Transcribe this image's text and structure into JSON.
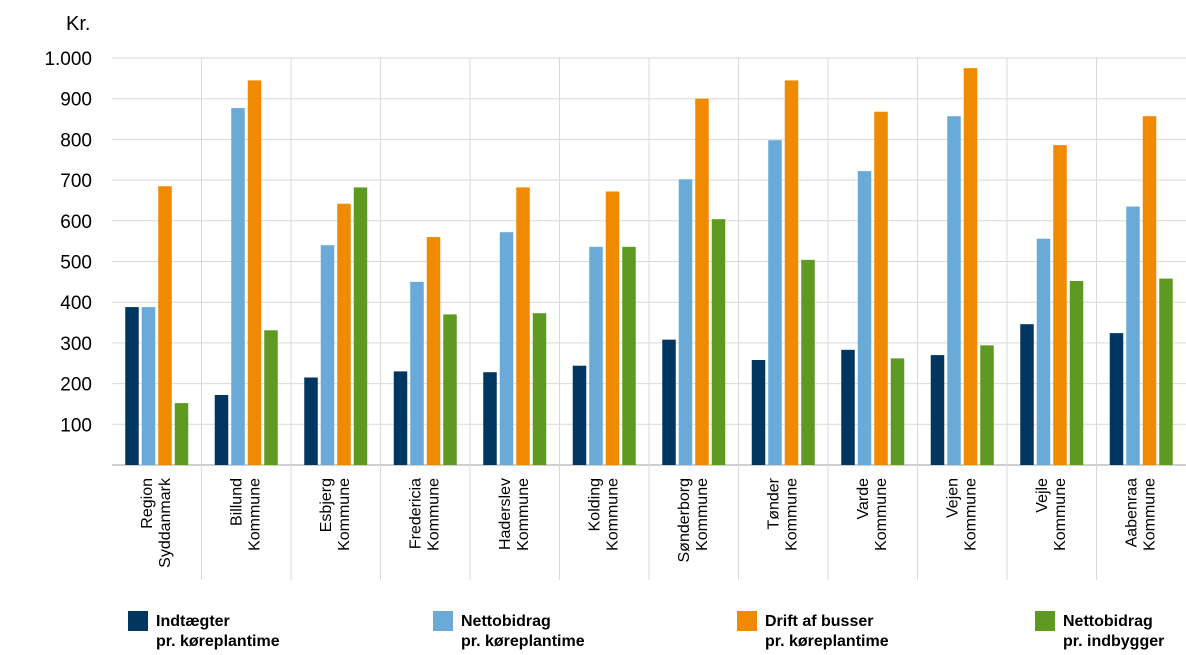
{
  "chart_data": {
    "type": "bar",
    "unit_label": "Kr.",
    "categories": [
      [
        "Region",
        "Syddanmark"
      ],
      [
        "Billund",
        "Kommune"
      ],
      [
        "Esbjerg",
        "Kommune"
      ],
      [
        "Fredericia",
        "Kommune"
      ],
      [
        "Haderslev",
        "Kommune"
      ],
      [
        "Kolding",
        "Kommune"
      ],
      [
        "Sønderborg",
        "Kommune"
      ],
      [
        "Tønder",
        "Kommune"
      ],
      [
        "Varde",
        "Kommune"
      ],
      [
        "Vejen",
        "Kommune"
      ],
      [
        "Vejle",
        "Kommune"
      ],
      [
        "Aabenraa",
        "Kommune"
      ]
    ],
    "series": [
      {
        "name": [
          "Indtægter",
          "pr. køreplantime"
        ],
        "color": "#003660",
        "values": [
          388,
          172,
          215,
          230,
          228,
          244,
          308,
          258,
          283,
          270,
          346,
          324
        ]
      },
      {
        "name": [
          "Nettobidrag",
          "pr. køreplantime"
        ],
        "color": "#6aaad8",
        "values": [
          388,
          877,
          540,
          450,
          572,
          536,
          702,
          798,
          722,
          857,
          556,
          635
        ]
      },
      {
        "name": [
          "Drift af busser",
          "pr. køreplantime"
        ],
        "color": "#f08a00",
        "values": [
          685,
          945,
          642,
          560,
          682,
          672,
          900,
          945,
          868,
          975,
          786,
          857
        ]
      },
      {
        "name": [
          "Nettobidrag",
          "pr. indbygger"
        ],
        "color": "#5e9a22",
        "values": [
          152,
          331,
          682,
          370,
          373,
          536,
          604,
          504,
          262,
          294,
          452,
          458
        ]
      }
    ],
    "yticks": [
      "100",
      "200",
      "300",
      "400",
      "500",
      "600",
      "700",
      "800",
      "900",
      "1.000"
    ],
    "ylim": [
      0,
      1000
    ],
    "grid": true,
    "legend_position": "bottom"
  }
}
